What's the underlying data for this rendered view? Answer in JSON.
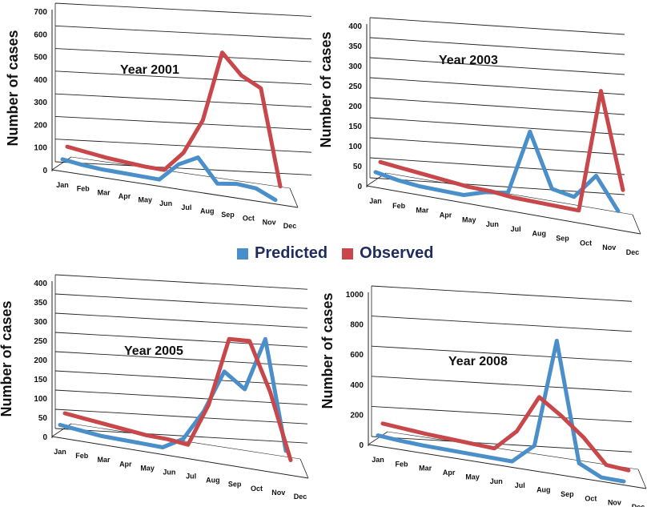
{
  "legend": {
    "predicted": "Predicted",
    "observed": "Observed"
  },
  "colors": {
    "predicted": "#4a8fc9",
    "observed": "#c8474a",
    "grid": "#222222",
    "label": "#111111"
  },
  "chart_data": [
    {
      "type": "line",
      "title": "Year 2001",
      "ylabel": "Number of cases",
      "categories": [
        "Jan",
        "Feb",
        "Mar",
        "Apr",
        "May",
        "Jun",
        "Jul",
        "Aug",
        "Sep",
        "Oct",
        "Nov",
        "Dec"
      ],
      "ylim": [
        0,
        700
      ],
      "yticks": [
        0,
        100,
        200,
        300,
        400,
        500,
        600,
        700
      ],
      "series": [
        {
          "name": "Predicted",
          "values": [
            20,
            10,
            5,
            5,
            5,
            5,
            95,
            145,
            35,
            50,
            45,
            5
          ]
        },
        {
          "name": "Observed",
          "values": [
            50,
            40,
            30,
            25,
            20,
            20,
            120,
            295,
            640,
            545,
            500,
            40
          ]
        }
      ]
    },
    {
      "type": "line",
      "title": "Year 2003",
      "ylabel": "Number of cases",
      "categories": [
        "Jan",
        "Feb",
        "Mar",
        "Apr",
        "May",
        "Jun",
        "Jul",
        "Aug",
        "Sep",
        "Oct",
        "Nov",
        "Dec"
      ],
      "ylim": [
        0,
        400
      ],
      "yticks": [
        0,
        50,
        100,
        150,
        200,
        250,
        300,
        350,
        400
      ],
      "series": [
        {
          "name": "Predicted",
          "values": [
            20,
            10,
            5,
            5,
            5,
            25,
            35,
            215,
            70,
            60,
            130,
            45
          ]
        },
        {
          "name": "Observed",
          "values": [
            30,
            25,
            20,
            15,
            10,
            10,
            5,
            5,
            5,
            5,
            345,
            85
          ]
        }
      ]
    },
    {
      "type": "line",
      "title": "Year 2005",
      "ylabel": "Number of cases",
      "categories": [
        "Jan",
        "Feb",
        "Mar",
        "Apr",
        "May",
        "Jun",
        "Jul",
        "Aug",
        "Sep",
        "Oct",
        "Nov",
        "Dec"
      ],
      "ylim": [
        0,
        400
      ],
      "yticks": [
        0,
        50,
        100,
        150,
        200,
        250,
        300,
        350,
        400
      ],
      "series": [
        {
          "name": "Predicted",
          "values": [
            15,
            10,
            5,
            5,
            5,
            5,
            40,
            130,
            255,
            215,
            370,
            60
          ]
        },
        {
          "name": "Observed",
          "values": [
            30,
            25,
            20,
            15,
            10,
            10,
            5,
            130,
            330,
            335,
            200,
            15
          ]
        }
      ]
    },
    {
      "type": "line",
      "title": "Year 2008",
      "ylabel": "Number of cases",
      "categories": [
        "Jan",
        "Feb",
        "Mar",
        "Apr",
        "May",
        "Jun",
        "Jul",
        "Aug",
        "Sep",
        "Oct",
        "Nov",
        "Dec"
      ],
      "ylim": [
        0,
        1000
      ],
      "yticks": [
        0,
        200,
        400,
        600,
        800,
        1000
      ],
      "series": [
        {
          "name": "Predicted",
          "values": [
            20,
            10,
            5,
            5,
            5,
            5,
            5,
            150,
            950,
            80,
            5,
            5
          ]
        },
        {
          "name": "Observed",
          "values": [
            60,
            50,
            40,
            35,
            30,
            25,
            180,
            460,
            350,
            220,
            50,
            40
          ]
        }
      ]
    }
  ]
}
